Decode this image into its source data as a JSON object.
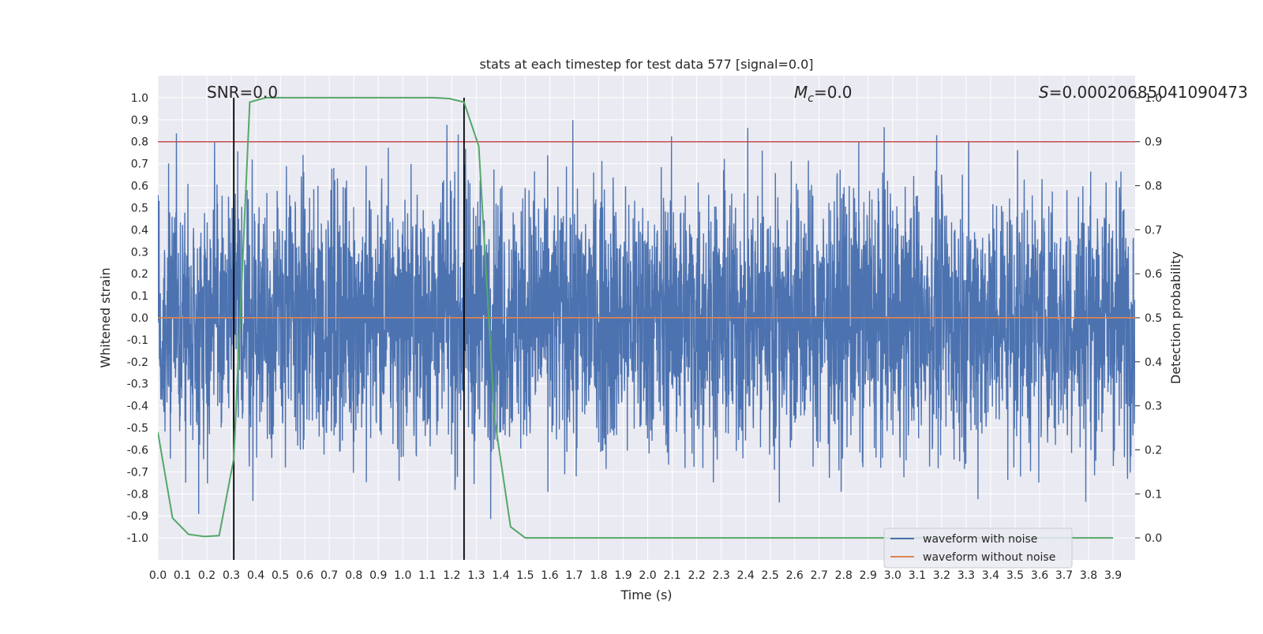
{
  "chart_data": {
    "type": "line",
    "title": "stats at each timestep for test data 577 [signal=0.0]",
    "xlabel": "Time (s)",
    "ylabel": "Whitened strain",
    "y2label": "Detection probability",
    "xlim": [
      0.0,
      3.99
    ],
    "ylim": [
      -1.1,
      1.1
    ],
    "y2lim": [
      -0.05,
      1.05
    ],
    "x_ticks": [
      "0.0",
      "0.1",
      "0.2",
      "0.3",
      "0.4",
      "0.5",
      "0.6",
      "0.7",
      "0.8",
      "0.9",
      "1.0",
      "1.1",
      "1.2",
      "1.3",
      "1.4",
      "1.5",
      "1.6",
      "1.7",
      "1.8",
      "1.9",
      "2.0",
      "2.1",
      "2.2",
      "2.3",
      "2.4",
      "2.5",
      "2.6",
      "2.7",
      "2.8",
      "2.9",
      "3.0",
      "3.1",
      "3.2",
      "3.3",
      "3.4",
      "3.5",
      "3.6",
      "3.7",
      "3.8",
      "3.9"
    ],
    "y_ticks": [
      "1.0",
      "0.9",
      "0.8",
      "0.7",
      "0.6",
      "0.5",
      "0.4",
      "0.3",
      "0.2",
      "0.1",
      "0.0",
      "-0.1",
      "-0.2",
      "-0.3",
      "-0.4",
      "-0.5",
      "-0.6",
      "-0.7",
      "-0.8",
      "-0.9",
      "-1.0"
    ],
    "y2_ticks": [
      "0.0",
      "0.1",
      "0.2",
      "0.3",
      "0.4",
      "0.5",
      "0.6",
      "0.7",
      "0.8",
      "0.9",
      "1.0"
    ],
    "grid": true,
    "legend_position": "bottom-right",
    "annotations": {
      "snr": "SNR=0.0",
      "mc_symbol": "M",
      "mc_sub": "c",
      "mc_value": "=0.0",
      "s_symbol": "S",
      "s_value": "=0.00020685041090473"
    },
    "series": [
      {
        "name": "waveform with noise",
        "color": "#4c72b0",
        "axis": "left",
        "noise_amplitude_range": [
          -1.0,
          1.0
        ]
      },
      {
        "name": "waveform without noise",
        "color": "#dd8452",
        "axis": "left",
        "x": [
          0.0,
          3.99
        ],
        "y": [
          0.0,
          0.0
        ]
      },
      {
        "color": "#55a868",
        "axis": "right",
        "x": [
          0.0,
          0.06,
          0.125,
          0.19,
          0.25,
          0.31,
          0.375,
          0.44,
          0.5,
          0.56,
          0.625,
          0.69,
          0.75,
          0.81,
          0.875,
          0.94,
          1.0,
          1.06,
          1.125,
          1.19,
          1.25,
          1.31,
          1.375,
          1.44,
          1.5,
          1.56,
          3.9
        ],
        "y": [
          0.24,
          0.045,
          0.008,
          0.003,
          0.005,
          0.18,
          0.99,
          1.0,
          1.0,
          1.0,
          1.0,
          1.0,
          1.0,
          1.0,
          1.0,
          1.0,
          1.0,
          1.0,
          1.0,
          0.998,
          0.99,
          0.89,
          0.27,
          0.025,
          0.0,
          0.0,
          0.0
        ]
      }
    ],
    "threshold": {
      "value": 0.9,
      "axis": "right",
      "color": "#c44e52"
    },
    "event_markers": {
      "x": [
        0.31,
        1.25
      ],
      "y_range": [
        -0.05,
        1.0
      ],
      "color": "#000000"
    }
  }
}
